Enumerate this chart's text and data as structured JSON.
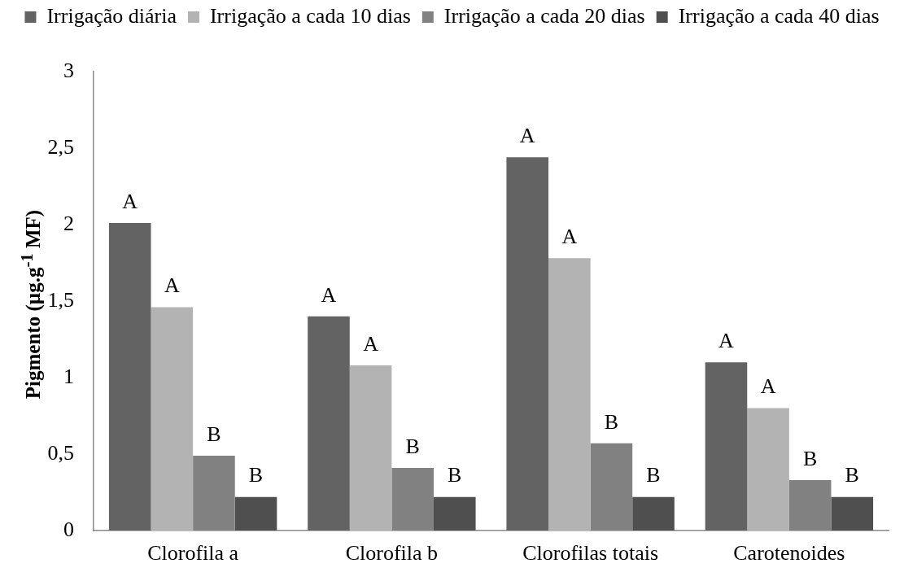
{
  "chart_data": {
    "type": "bar",
    "ylabel": "Pigmento (µg.g$^{-1}$ MF)",
    "categories": [
      "Clorofila a",
      "Clorofila b",
      "Clorofilas totais",
      "Carotenoides"
    ],
    "series": [
      {
        "name": "Irrigação diária",
        "color": "#636363",
        "values": [
          2.01,
          1.4,
          2.44,
          1.1
        ],
        "value_labels": [
          "A",
          "A",
          "A",
          "A"
        ]
      },
      {
        "name": "Irrigação a cada 10 dias",
        "color": "#b3b3b3",
        "values": [
          1.46,
          1.08,
          1.78,
          0.8
        ],
        "value_labels": [
          "A",
          "A",
          "A",
          "A"
        ]
      },
      {
        "name": "Irrigação a cada 20 dias",
        "color": "#818181",
        "values": [
          0.49,
          0.41,
          0.57,
          0.33
        ],
        "value_labels": [
          "B",
          "B",
          "B",
          "B"
        ]
      },
      {
        "name": "Irrigação a cada 40 dias",
        "color": "#4f4f4f",
        "values": [
          0.22,
          0.22,
          0.22,
          0.22
        ],
        "value_labels": [
          "B",
          "B",
          "B",
          "B"
        ]
      }
    ],
    "ylim": [
      0,
      3
    ],
    "yticks": [
      0,
      {
        "value": 0.5,
        "label": "0,5"
      },
      1,
      {
        "value": 1.5,
        "label": "1,5"
      },
      2,
      {
        "value": 2.5,
        "label": "2,5"
      },
      3
    ],
    "grid": false,
    "legend": "top"
  }
}
